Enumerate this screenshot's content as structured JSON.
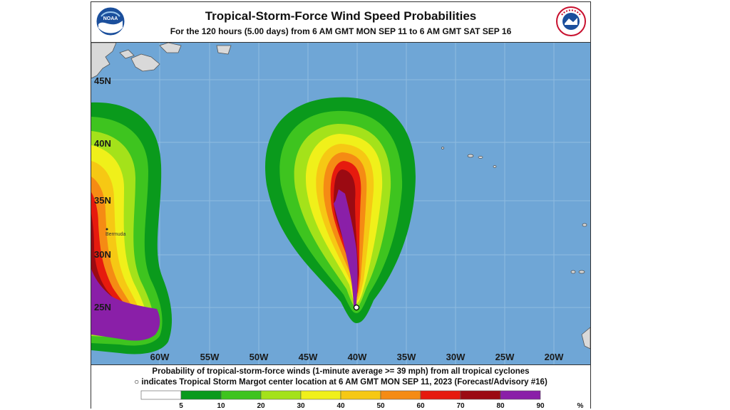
{
  "header": {
    "title": "Tropical-Storm-Force Wind Speed Probabilities",
    "subtitle": "For the 120 hours (5.00 days) from 6 AM GMT MON SEP 11 to 6 AM GMT SAT SEP 16",
    "logo_left": "NOAA",
    "logo_right": "NATIONAL WEATHER SERVICE"
  },
  "map": {
    "ocean_color": "#6fa6d6",
    "land_color": "#d9d9d9",
    "lat_labels": [
      "45N",
      "40N",
      "35N",
      "30N",
      "25N"
    ],
    "lon_labels": [
      "60W",
      "55W",
      "50W",
      "45W",
      "40W",
      "35W",
      "30W",
      "25W",
      "20W"
    ],
    "place_label": "Bermuda"
  },
  "footer": {
    "line1": "Probability of tropical-storm-force winds (1-minute average >= 39 mph) from all tropical cyclones",
    "line2": "○ indicates Tropical Storm Margot center location at 6 AM GMT MON SEP 11, 2023 (Forecast/Advisory #16)"
  },
  "legend": {
    "colors": [
      "#ffffff",
      "#0a9a1c",
      "#3ec41f",
      "#a4e21a",
      "#f0f01a",
      "#f6c814",
      "#f58b14",
      "#e61a0e",
      "#9b0a12",
      "#8a1fa8"
    ],
    "labels": [
      "5",
      "10",
      "20",
      "30",
      "40",
      "50",
      "60",
      "70",
      "80",
      "90",
      "%"
    ]
  }
}
